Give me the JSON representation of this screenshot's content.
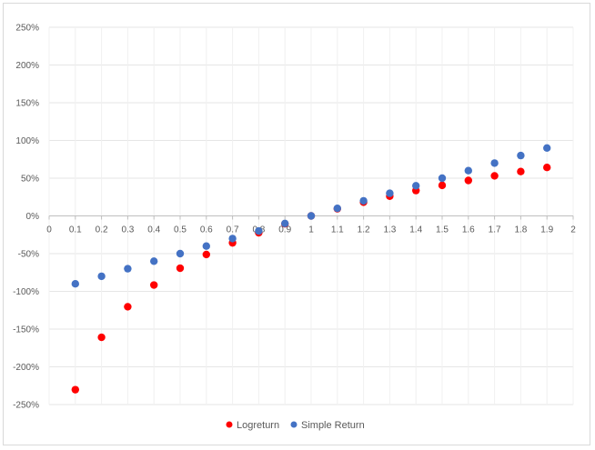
{
  "chart_data": {
    "type": "scatter",
    "title": "",
    "xlabel": "",
    "ylabel": "",
    "xlim": [
      0,
      2
    ],
    "ylim": [
      -2.6,
      2.6
    ],
    "x_ticks": [
      "0",
      "0.1",
      "0.2",
      "0.3",
      "0.4",
      "0.5",
      "0.6",
      "0.7",
      "0.8",
      "0.9",
      "1",
      "1.1",
      "1.2",
      "1.3",
      "1.4",
      "1.5",
      "1.6",
      "1.7",
      "1.8",
      "1.9",
      "2"
    ],
    "y_ticks": [
      "250%",
      "200%",
      "150%",
      "100%",
      "50%",
      "0%",
      "-50%",
      "-100%",
      "-150%",
      "-200%",
      "-250%"
    ],
    "grid": true,
    "legend_position": "bottom",
    "series": [
      {
        "name": "Logreturn",
        "color": "#ff0000",
        "x": [
          0.1,
          0.2,
          0.3,
          0.4,
          0.5,
          0.6,
          0.7,
          0.8,
          0.9,
          1.0,
          1.1,
          1.2,
          1.3,
          1.4,
          1.5,
          1.6,
          1.7,
          1.8,
          1.9
        ],
        "y": [
          -2.303,
          -1.609,
          -1.204,
          -0.916,
          -0.693,
          -0.511,
          -0.357,
          -0.223,
          -0.105,
          0.0,
          0.095,
          0.182,
          0.262,
          0.336,
          0.405,
          0.47,
          0.531,
          0.588,
          0.642
        ]
      },
      {
        "name": "Simple Return",
        "color": "#4472c4",
        "x": [
          0.1,
          0.2,
          0.3,
          0.4,
          0.5,
          0.6,
          0.7,
          0.8,
          0.9,
          1.0,
          1.1,
          1.2,
          1.3,
          1.4,
          1.5,
          1.6,
          1.7,
          1.8,
          1.9
        ],
        "y": [
          -0.9,
          -0.8,
          -0.7,
          -0.6,
          -0.5,
          -0.4,
          -0.3,
          -0.2,
          -0.1,
          0.0,
          0.1,
          0.2,
          0.3,
          0.4,
          0.5,
          0.6,
          0.7,
          0.8,
          0.9
        ]
      }
    ]
  }
}
